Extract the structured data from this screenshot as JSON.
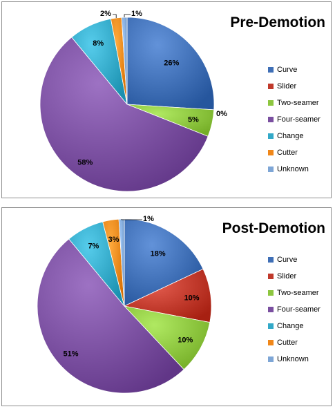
{
  "chart_data": [
    {
      "type": "pie",
      "title": "Pre-Demotion",
      "categories": [
        "Curve",
        "Slider",
        "Two-seamer",
        "Four-seamer",
        "Change",
        "Cutter",
        "Unknown"
      ],
      "values": [
        26,
        0,
        5,
        58,
        8,
        2,
        1
      ],
      "labels": [
        "26%",
        "0%",
        "5%",
        "58%",
        "8%",
        "2%",
        "1%"
      ],
      "legend_position": "right"
    },
    {
      "type": "pie",
      "title": "Post-Demotion",
      "categories": [
        "Curve",
        "Slider",
        "Two-seamer",
        "Four-seamer",
        "Change",
        "Cutter",
        "Unknown"
      ],
      "values": [
        18,
        10,
        10,
        51,
        7,
        3,
        1
      ],
      "labels": [
        "18%",
        "10%",
        "10%",
        "51%",
        "7%",
        "3%",
        "1%"
      ],
      "legend_position": "right"
    }
  ],
  "colors": [
    "#3f6fb6",
    "#c0392b",
    "#8dc63f",
    "#7a4fa0",
    "#33a9c8",
    "#f0871a",
    "#7ea6d6"
  ]
}
